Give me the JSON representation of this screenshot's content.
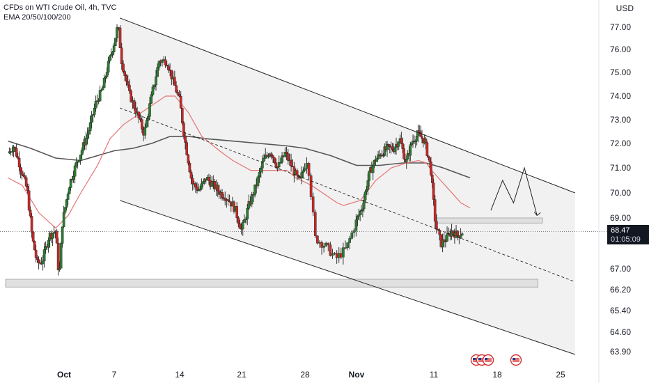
{
  "header": {
    "symbol_line": "CFDs on WTI Crude Oil, 4h, TVC",
    "indicator_line": "EMA 20/50/100/200"
  },
  "currency": "USD",
  "last_price": {
    "value": "68.47",
    "countdown": "01:05:09"
  },
  "colors": {
    "up": "#26a69a",
    "down": "#ef5350",
    "candle_body_up": "#2e7d32",
    "candle_body_down": "#c62828",
    "ema_fast": "#e57373",
    "ema_slow": "#555555",
    "channel_fill": "#eeeeee",
    "zone_fill": "#e0e0e0"
  },
  "chart_data": {
    "type": "candlestick",
    "title": "CFDs on WTI Crude Oil, 4h, TVC",
    "ylabel": "USD",
    "ylim": [
      63.6,
      77.6
    ],
    "y_ticks": [
      "77.00",
      "76.00",
      "75.00",
      "74.00",
      "73.00",
      "72.00",
      "71.00",
      "70.00",
      "69.00",
      "67.00",
      "66.20",
      "65.40",
      "64.60",
      "63.90"
    ],
    "x_ticks": [
      "Oct",
      "7",
      "14",
      "21",
      "28",
      "Nov",
      "11",
      "18",
      "25"
    ],
    "x_tick_days": [
      1,
      7,
      14,
      21,
      28,
      32,
      42,
      49,
      56
    ],
    "grid": false,
    "price_path": [
      [
        -5.7,
        71.6
      ],
      [
        -5.0,
        71.9
      ],
      [
        -4.2,
        71.0
      ],
      [
        -3.4,
        70.1
      ],
      [
        -2.8,
        68.2
      ],
      [
        -2.2,
        67.2
      ],
      [
        -1.6,
        67.3
      ],
      [
        -0.8,
        68.3
      ],
      [
        0.0,
        68.5
      ],
      [
        0.4,
        66.6
      ],
      [
        0.8,
        68.8
      ],
      [
        1.6,
        70.3
      ],
      [
        2.4,
        71.1
      ],
      [
        3.2,
        71.8
      ],
      [
        4.0,
        72.6
      ],
      [
        4.8,
        73.7
      ],
      [
        5.6,
        74.3
      ],
      [
        6.4,
        75.5
      ],
      [
        7.0,
        76.3
      ],
      [
        7.4,
        77.1
      ],
      [
        7.8,
        75.5
      ],
      [
        8.6,
        74.1
      ],
      [
        9.4,
        73.3
      ],
      [
        10.2,
        72.4
      ],
      [
        11.0,
        74.0
      ],
      [
        11.8,
        75.5
      ],
      [
        12.6,
        75.5
      ],
      [
        13.4,
        74.5
      ],
      [
        14.0,
        73.8
      ],
      [
        14.6,
        72.1
      ],
      [
        15.4,
        70.4
      ],
      [
        16.2,
        70.1
      ],
      [
        17.0,
        70.6
      ],
      [
        17.8,
        70.3
      ],
      [
        18.6,
        70.0
      ],
      [
        19.4,
        69.8
      ],
      [
        20.2,
        69.4
      ],
      [
        21.0,
        68.5
      ],
      [
        21.8,
        69.5
      ],
      [
        22.6,
        70.3
      ],
      [
        23.4,
        71.3
      ],
      [
        24.2,
        71.7
      ],
      [
        25.0,
        71.0
      ],
      [
        25.8,
        71.6
      ],
      [
        26.6,
        71.0
      ],
      [
        27.4,
        70.4
      ],
      [
        28.2,
        71.4
      ],
      [
        28.8,
        68.2
      ],
      [
        29.6,
        67.9
      ],
      [
        30.4,
        67.4
      ],
      [
        31.2,
        67.8
      ],
      [
        32.0,
        68.9
      ],
      [
        32.8,
        69.5
      ],
      [
        33.6,
        70.7
      ],
      [
        34.4,
        71.3
      ],
      [
        35.2,
        71.6
      ],
      [
        36.0,
        71.8
      ],
      [
        36.8,
        71.8
      ],
      [
        37.6,
        72.2
      ],
      [
        38.4,
        71.2
      ],
      [
        39.2,
        72.1
      ],
      [
        40.0,
        72.4
      ],
      [
        40.8,
        72.1
      ],
      [
        41.6,
        71.0
      ],
      [
        42.2,
        68.7
      ],
      [
        42.8,
        68.0
      ],
      [
        43.4,
        68.2
      ],
      [
        44.0,
        68.5
      ],
      [
        44.6,
        68.3
      ],
      [
        45.2,
        68.47
      ]
    ],
    "ema_fast": [
      [
        -5.7,
        70.6
      ],
      [
        -4.0,
        70.3
      ],
      [
        -2.0,
        69.2
      ],
      [
        0.0,
        68.6
      ],
      [
        1.5,
        69.1
      ],
      [
        3.0,
        70.0
      ],
      [
        5.0,
        71.1
      ],
      [
        6.5,
        72.2
      ],
      [
        8.0,
        72.8
      ],
      [
        9.5,
        73.2
      ],
      [
        11.0,
        73.6
      ],
      [
        12.5,
        74.0
      ],
      [
        13.5,
        74.0
      ],
      [
        15.0,
        73.3
      ],
      [
        16.5,
        72.3
      ],
      [
        18.5,
        71.7
      ],
      [
        20.0,
        71.3
      ],
      [
        22.0,
        70.9
      ],
      [
        24.0,
        70.9
      ],
      [
        26.0,
        70.9
      ],
      [
        27.0,
        70.6
      ],
      [
        28.5,
        70.3
      ],
      [
        30.5,
        69.6
      ],
      [
        31.0,
        69.5
      ],
      [
        32.5,
        69.7
      ],
      [
        34.5,
        70.5
      ],
      [
        36.5,
        71.0
      ],
      [
        38.5,
        71.2
      ],
      [
        40.0,
        71.3
      ],
      [
        41.0,
        71.2
      ],
      [
        42.0,
        70.8
      ],
      [
        43.5,
        70.2
      ],
      [
        45.0,
        69.6
      ],
      [
        46.0,
        69.4
      ]
    ],
    "ema_slow": [
      [
        -5.7,
        72.1
      ],
      [
        -3.0,
        71.8
      ],
      [
        0.0,
        71.4
      ],
      [
        3.0,
        71.3
      ],
      [
        5.0,
        71.5
      ],
      [
        7.0,
        71.7
      ],
      [
        9.0,
        71.8
      ],
      [
        11.0,
        72.0
      ],
      [
        13.0,
        72.3
      ],
      [
        15.0,
        72.3
      ],
      [
        17.0,
        72.2
      ],
      [
        20.0,
        72.1
      ],
      [
        23.0,
        72.0
      ],
      [
        26.0,
        71.9
      ],
      [
        28.0,
        71.8
      ],
      [
        30.0,
        71.5
      ],
      [
        32.0,
        71.1
      ],
      [
        35.0,
        71.1
      ],
      [
        38.0,
        71.2
      ],
      [
        41.0,
        71.2
      ],
      [
        43.0,
        71.0
      ],
      [
        46.0,
        70.6
      ]
    ],
    "channel": {
      "upper": [
        [
          7.6,
          77.4
        ],
        [
          57.6,
          70.0
        ]
      ],
      "lower": [
        [
          7.6,
          69.7
        ],
        [
          57.6,
          63.8
        ]
      ],
      "mid_dashed": [
        [
          7.6,
          73.5
        ],
        [
          57.6,
          66.5
        ]
      ]
    },
    "zones": [
      {
        "x": [
          -6.0,
          53.5
        ],
        "y": [
          66.3,
          66.6
        ]
      },
      {
        "x": [
          42.3,
          54.0
        ],
        "y": [
          68.8,
          69.0
        ]
      }
    ],
    "projection": [
      [
        48.3,
        69.3
      ],
      [
        49.6,
        70.5
      ],
      [
        50.8,
        69.6
      ],
      [
        52.0,
        71.0
      ],
      [
        53.4,
        69.1
      ]
    ]
  }
}
